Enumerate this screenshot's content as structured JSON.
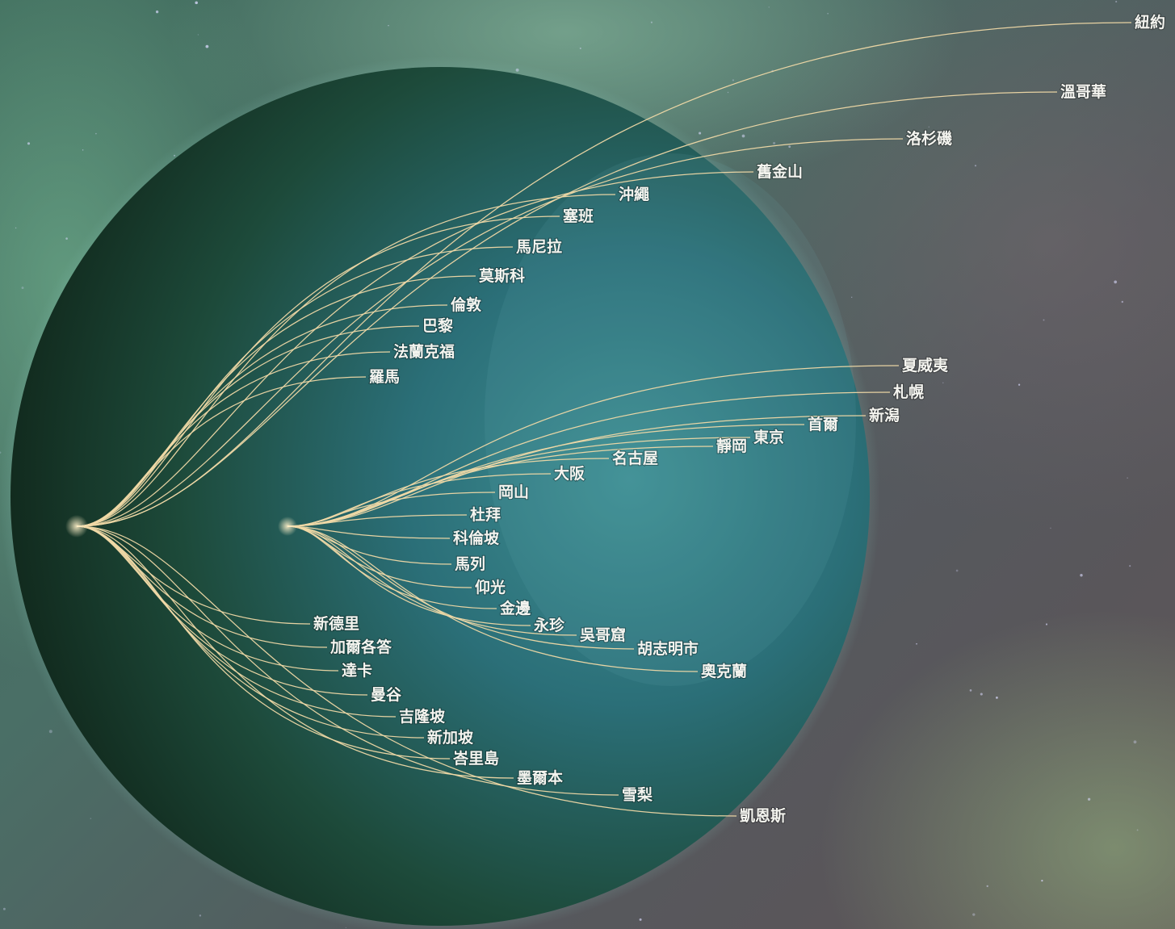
{
  "colors": {
    "route": "#f0d9a6",
    "label": "#f4f4ef",
    "globe_light": "#2f7f86",
    "globe_dark": "#15301f"
  },
  "hubs": [
    {
      "id": "hub-west",
      "routes": [
        "新德里",
        "加爾各答",
        "達卡",
        "曼谷",
        "吉隆坡",
        "新加坡",
        "峇里島",
        "墨爾本",
        "雪梨",
        "凱恩斯",
        "羅馬",
        "法蘭克福",
        "巴黎",
        "倫敦",
        "莫斯科",
        "馬尼拉",
        "塞班",
        "沖繩",
        "舊金山",
        "洛杉磯",
        "溫哥華",
        "紐約"
      ]
    },
    {
      "id": "hub-east",
      "routes": [
        "夏威夷",
        "札幌",
        "新潟",
        "首爾",
        "東京",
        "靜岡",
        "名古屋",
        "大阪",
        "岡山",
        "杜拜",
        "科倫坡",
        "馬列",
        "仰光",
        "金邊",
        "永珍",
        "吳哥窟",
        "胡志明市",
        "奧克蘭"
      ]
    }
  ],
  "destinations": {
    "ny": "紐約",
    "vancouver": "溫哥華",
    "la": "洛杉磯",
    "sf": "舊金山",
    "okinawa": "沖繩",
    "saipan": "塞班",
    "manila": "馬尼拉",
    "moscow": "莫斯科",
    "london": "倫敦",
    "paris": "巴黎",
    "frankfurt": "法蘭克福",
    "rome": "羅馬",
    "hawaii": "夏威夷",
    "sapporo": "札幌",
    "niigata": "新潟",
    "seoul": "首爾",
    "tokyo": "東京",
    "shizuoka": "靜岡",
    "nagoya": "名古屋",
    "osaka": "大阪",
    "okayama": "岡山",
    "dubai": "杜拜",
    "colombo": "科倫坡",
    "male": "馬列",
    "yangon": "仰光",
    "phnompenh": "金邊",
    "vientiane": "永珍",
    "angkor": "吳哥窟",
    "hcmc": "胡志明市",
    "auckland": "奧克蘭",
    "newdelhi": "新德里",
    "kolkata": "加爾各答",
    "dhaka": "達卡",
    "bangkok": "曼谷",
    "kl": "吉隆坡",
    "singapore": "新加坡",
    "bali": "峇里島",
    "melbourne": "墨爾本",
    "sydney": "雪梨",
    "cairns": "凱恩斯"
  }
}
